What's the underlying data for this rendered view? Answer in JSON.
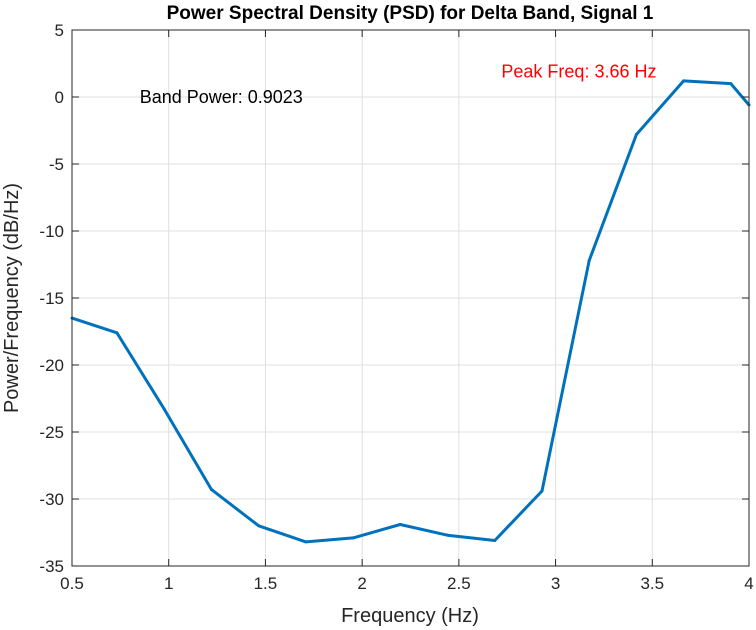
{
  "chart_data": {
    "type": "line",
    "title": "Power Spectral Density (PSD) for Delta Band, Signal 1",
    "xlabel": "Frequency (Hz)",
    "ylabel": "Power/Frequency (dB/Hz)",
    "xlim": [
      0.5,
      4
    ],
    "ylim": [
      -35,
      5
    ],
    "x_ticks": [
      0.5,
      1,
      1.5,
      2,
      2.5,
      3,
      3.5,
      4
    ],
    "x_tick_labels": [
      "0.5",
      "1",
      "1.5",
      "2",
      "2.5",
      "3",
      "3.5",
      "4"
    ],
    "y_ticks": [
      -35,
      -30,
      -25,
      -20,
      -15,
      -10,
      -5,
      0,
      5
    ],
    "y_tick_labels": [
      "-35",
      "-30",
      "-25",
      "-20",
      "-15",
      "-10",
      "-5",
      "0",
      "5"
    ],
    "grid": true,
    "series": [
      {
        "color": "#0072BD",
        "x": [
          0.5,
          0.732,
          0.977,
          1.221,
          1.465,
          1.709,
          1.953,
          2.197,
          2.441,
          2.686,
          2.93,
          3.174,
          3.418,
          3.662,
          3.906,
          4.0
        ],
        "y": [
          -16.5,
          -17.6,
          -23.3,
          -29.3,
          -32.0,
          -33.2,
          -32.9,
          -31.9,
          -32.7,
          -33.1,
          -29.4,
          -12.2,
          -2.8,
          1.2,
          1.0,
          -0.6
        ]
      }
    ],
    "annotations": [
      {
        "text": "Band Power: 0.9023",
        "x": 0.85,
        "y": 0.0,
        "color": "#000000"
      },
      {
        "text": "Peak Freq: 3.66 Hz",
        "x": 2.72,
        "y": 1.9,
        "color": "#FF0000"
      }
    ]
  }
}
